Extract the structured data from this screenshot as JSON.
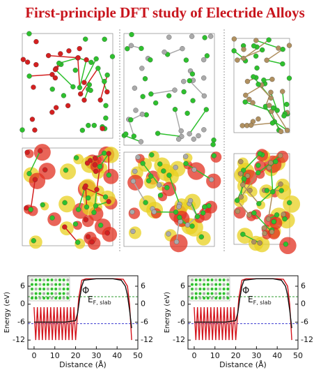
{
  "header": {
    "title": "First-principle DFT study of Electride Alloys"
  },
  "chart_data": [
    {
      "type": "line",
      "xlabel": "Distance (Å)",
      "ylabel": "Energy (eV)",
      "xlim": [
        -3,
        50
      ],
      "xticks": [
        0,
        10,
        20,
        30,
        40,
        50
      ],
      "ylim": [
        -15,
        9.5
      ],
      "yticks": [
        6,
        0,
        -6,
        -12
      ],
      "y2lim": [
        -15,
        9.5
      ],
      "y2ticks": [
        6,
        0,
        -6,
        -12
      ],
      "phi_label": "Φ",
      "ef_label": {
        "text": "E",
        "sub": "F, slab"
      },
      "hlines": [
        {
          "y": 2.5,
          "color": "#2e9a2e"
        },
        {
          "y": -6.5,
          "color": "#3a3ad0"
        }
      ],
      "series": [
        {
          "color": "#d4141c",
          "x": [
            0,
            0.8,
            1.6,
            2.4,
            3.2,
            4,
            4.8,
            5.6,
            6.4,
            7.2,
            8,
            8.8,
            9.6,
            10.4,
            11.2,
            12,
            12.8,
            13.6,
            14.4,
            15.2,
            16,
            16.8,
            17.6,
            18.4,
            19.2,
            20,
            21.5,
            23,
            25,
            30,
            35,
            40,
            43,
            45,
            46,
            47
          ],
          "values": [
            -1,
            -12,
            -1,
            -12,
            -1,
            -12,
            -1,
            -12,
            -1,
            -12,
            -1,
            -12,
            -1,
            -12,
            -1,
            -12,
            -1,
            -12,
            -1,
            -12,
            -1,
            -12,
            -1,
            -12,
            -1,
            -12,
            2,
            8,
            8.5,
            8.5,
            8.5,
            8.5,
            8.3,
            6,
            0,
            -12
          ]
        },
        {
          "color": "#111111",
          "x": [
            0,
            5,
            10,
            15,
            20,
            21,
            22,
            23,
            24,
            30,
            38,
            42,
            44,
            45,
            46,
            47
          ],
          "values": [
            -6,
            -6,
            -6,
            -6,
            -5.5,
            -3,
            2,
            6,
            8,
            8.5,
            8.5,
            8,
            6,
            3,
            -2,
            -8
          ]
        }
      ]
    },
    {
      "type": "line",
      "xlabel": "Distance (Å)",
      "ylabel": "Energy (eV)",
      "xlim": [
        -3,
        50
      ],
      "xticks": [
        0,
        10,
        20,
        30,
        40,
        50
      ],
      "ylim": [
        -15,
        9.5
      ],
      "yticks": [
        6,
        0,
        -6,
        -12
      ],
      "y2lim": [
        -15,
        9.5
      ],
      "y2ticks": [
        6,
        0,
        -6,
        -12
      ],
      "phi_label": "Φ",
      "ef_label": {
        "text": "E",
        "sub": "F, slab"
      },
      "hlines": [
        {
          "y": 2.5,
          "color": "#2e9a2e"
        },
        {
          "y": -6.5,
          "color": "#3a3ad0"
        }
      ],
      "series": [
        {
          "color": "#d4141c",
          "x": [
            0,
            0.8,
            1.6,
            2.4,
            3.2,
            4,
            4.8,
            5.6,
            6.4,
            7.2,
            8,
            8.8,
            9.6,
            10.4,
            11.2,
            12,
            12.8,
            13.6,
            14.4,
            15.2,
            16,
            16.8,
            17.6,
            18.4,
            19.2,
            20,
            21.5,
            23,
            25,
            30,
            35,
            40,
            43,
            45,
            46,
            47
          ],
          "values": [
            -1,
            -12,
            -1,
            -12,
            -1,
            -12,
            -1,
            -12,
            -1,
            -12,
            -1,
            -12,
            -1,
            -12,
            -1,
            -12,
            -1,
            -12,
            -1,
            -12,
            -1,
            -12,
            -1,
            -12,
            -1,
            -12,
            2,
            8,
            8.5,
            8.5,
            8.5,
            8.5,
            8.3,
            6,
            0,
            -12
          ]
        },
        {
          "color": "#111111",
          "x": [
            0,
            5,
            10,
            15,
            20,
            21,
            22,
            23,
            24,
            30,
            38,
            42,
            44,
            45,
            46,
            47
          ],
          "values": [
            -6,
            -6,
            -6,
            -6,
            -5.5,
            -3,
            2,
            6,
            8,
            8.5,
            8.5,
            8,
            6,
            3,
            -2,
            -8
          ]
        }
      ]
    }
  ]
}
